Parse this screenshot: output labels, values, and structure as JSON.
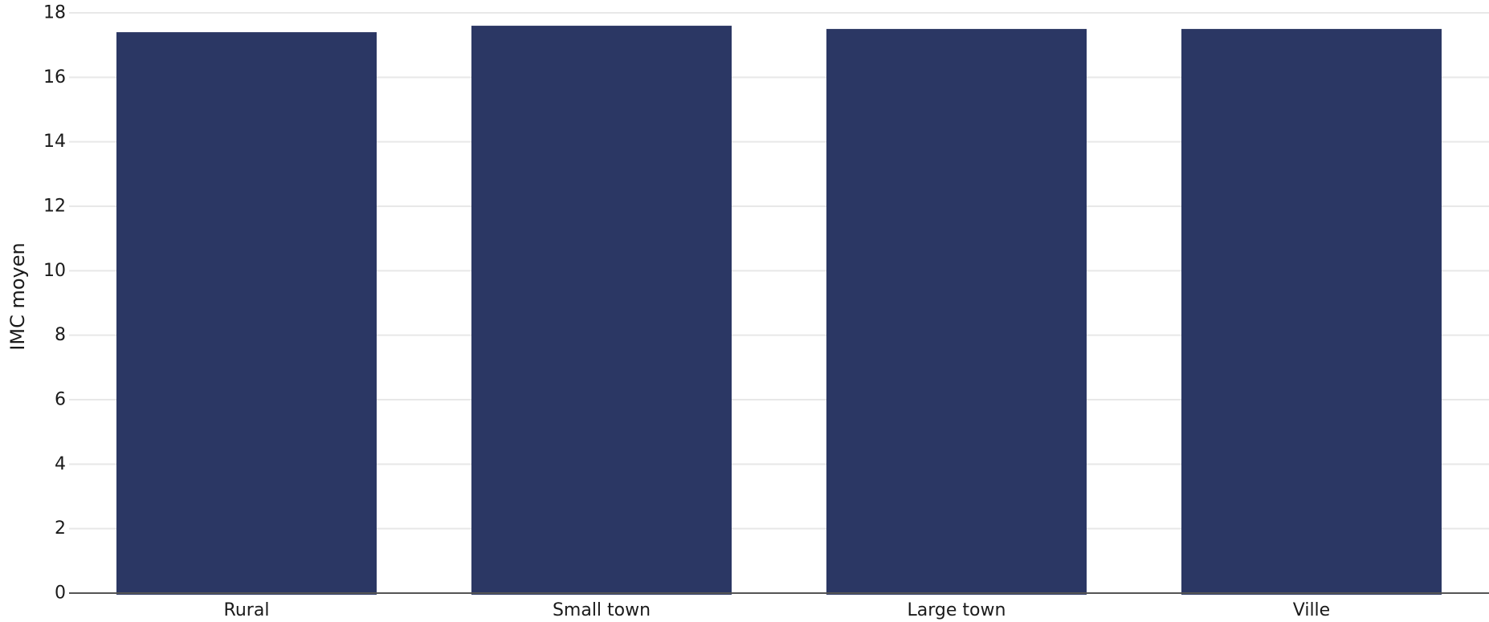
{
  "chart_data": {
    "type": "bar",
    "categories": [
      "Rural",
      "Small town",
      "Large town",
      "Ville"
    ],
    "values": [
      17.4,
      17.6,
      17.5,
      17.5
    ],
    "title": "",
    "xlabel": "",
    "ylabel": "IMC moyen",
    "ylim": [
      0,
      18
    ],
    "yticks": [
      0,
      2,
      4,
      6,
      8,
      10,
      12,
      14,
      16,
      18
    ],
    "grid": "horizontal",
    "legend": "none",
    "bar_color": "#2b3764"
  }
}
